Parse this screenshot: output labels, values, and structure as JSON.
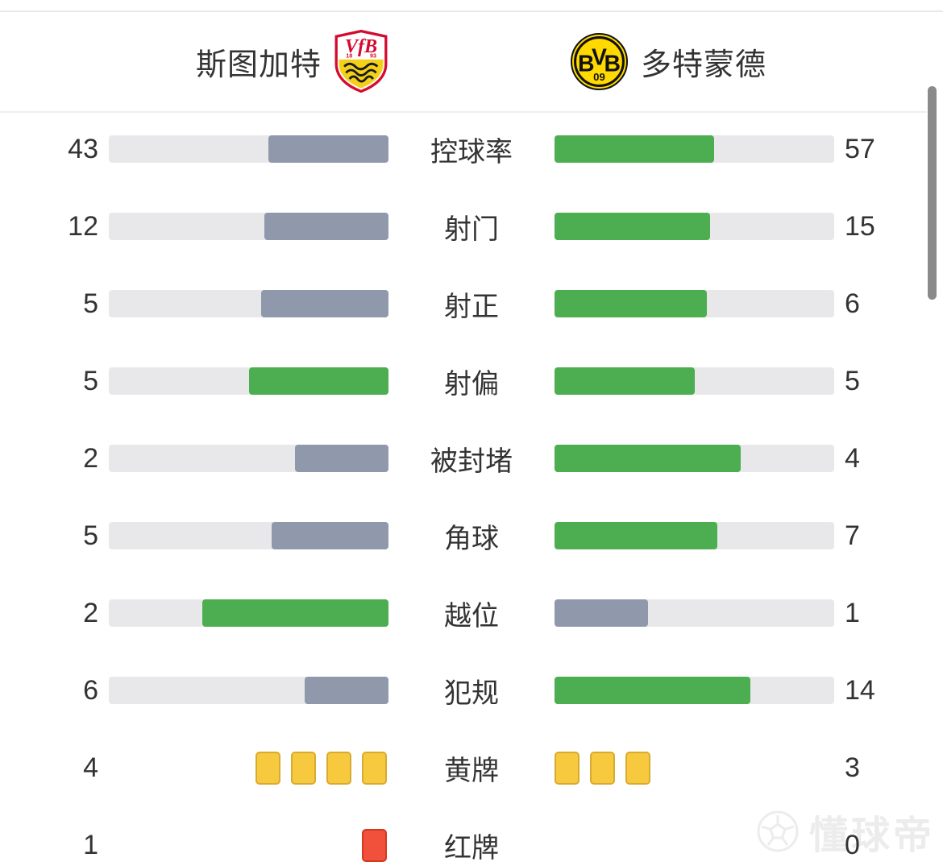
{
  "header": {
    "home_team": {
      "name": "斯图加特",
      "logo": "vfb-stuttgart-crest",
      "crest_year_left": "18",
      "crest_year_right": "93",
      "crest_letters": "VfB"
    },
    "away_team": {
      "name": "多特蒙德",
      "logo": "borussia-dortmund-crest",
      "crest_letters": "BVB",
      "crest_number": "09"
    }
  },
  "colors": {
    "lead_bar": "#4cae50",
    "trail_bar": "#9098ab",
    "bar_track": "#e8e8ea",
    "yellow_card": "#f6c93f",
    "yellow_card_border": "#d8ab2e",
    "red_card": "#f1503a",
    "red_card_border": "#d2391f",
    "text": "#333333",
    "vfb_red": "#d50a2e",
    "vfb_yellow": "#f3d11a",
    "bvb_yellow": "#ffd900",
    "scrollbar": "#8a8a8a",
    "watermark": "#ececec"
  },
  "stats": [
    {
      "label": "控球率",
      "home": 43,
      "away": 57,
      "type": "bar"
    },
    {
      "label": "射门",
      "home": 12,
      "away": 15,
      "type": "bar"
    },
    {
      "label": "射正",
      "home": 5,
      "away": 6,
      "type": "bar"
    },
    {
      "label": "射偏",
      "home": 5,
      "away": 5,
      "type": "bar"
    },
    {
      "label": "被封堵",
      "home": 2,
      "away": 4,
      "type": "bar"
    },
    {
      "label": "角球",
      "home": 5,
      "away": 7,
      "type": "bar"
    },
    {
      "label": "越位",
      "home": 2,
      "away": 1,
      "type": "bar"
    },
    {
      "label": "犯规",
      "home": 6,
      "away": 14,
      "type": "bar"
    },
    {
      "label": "黄牌",
      "home": 4,
      "away": 3,
      "type": "yellow-cards"
    },
    {
      "label": "红牌",
      "home": 1,
      "away": 0,
      "type": "red-cards"
    }
  ],
  "watermark": {
    "text": "懂球帝",
    "icon": "soccer-ball-icon"
  },
  "chart_data": {
    "type": "bar",
    "categories": [
      "控球率",
      "射门",
      "射正",
      "射偏",
      "被封堵",
      "角球",
      "越位",
      "犯规",
      "黄牌",
      "红牌"
    ],
    "series": [
      {
        "name": "斯图加特",
        "values": [
          43,
          12,
          5,
          5,
          2,
          5,
          2,
          6,
          4,
          1
        ]
      },
      {
        "name": "多特蒙德",
        "values": [
          57,
          15,
          6,
          5,
          4,
          7,
          1,
          14,
          3,
          0
        ]
      }
    ],
    "layout": "paired horizontal bars, fill = value/(home+away), leader green, trailer slate, ties both green; card rows rendered as card icons"
  }
}
